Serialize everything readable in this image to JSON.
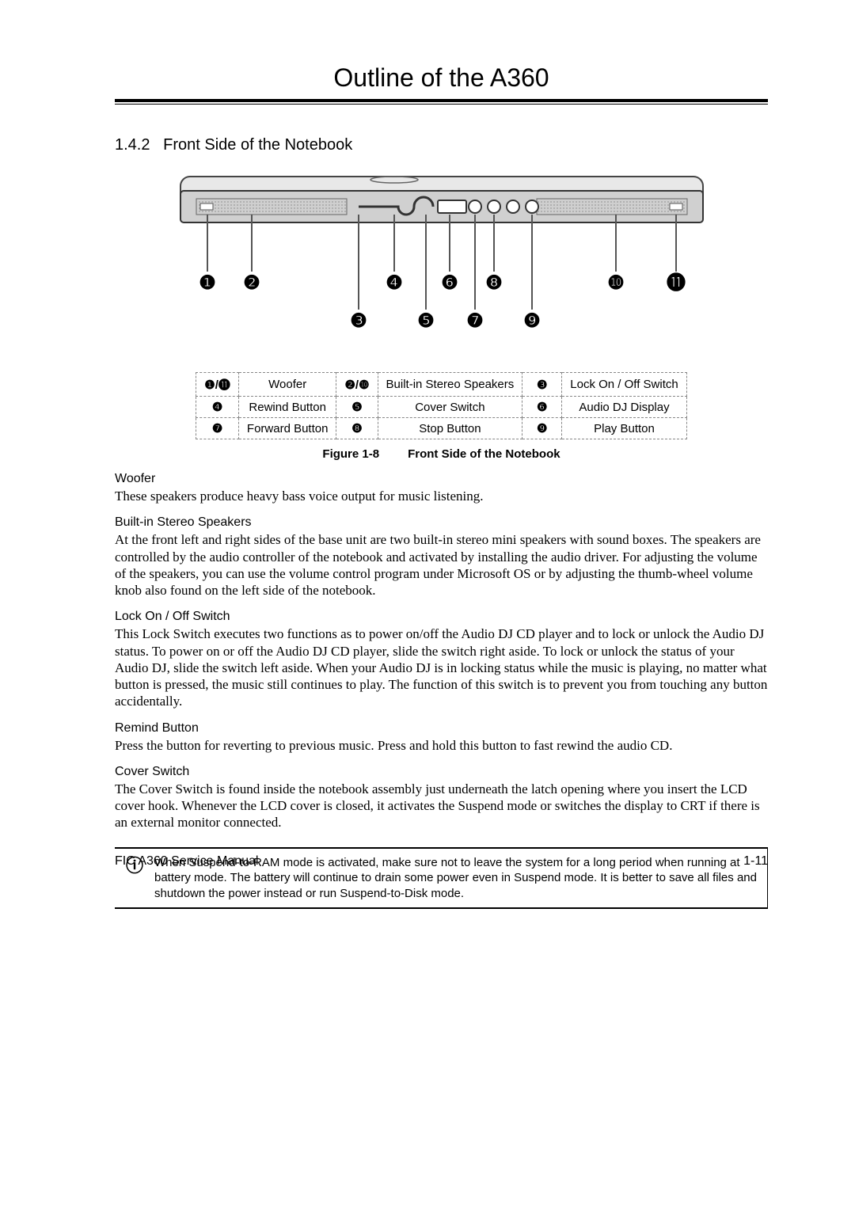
{
  "header": {
    "title": "Outline of the A360"
  },
  "section": {
    "number": "1.4.2",
    "title": "Front Side of the Notebook"
  },
  "diagram": {
    "callouts_top": [
      "❶",
      "❷",
      "❹",
      "❻",
      "❽",
      "❿",
      "⓫"
    ],
    "callouts_bot": [
      "❸",
      "❺",
      "❼",
      "❾"
    ],
    "device_fill": "#d8d8d8",
    "device_stroke": "#333333",
    "ptr_color": "#555555",
    "label_fontsize": 20
  },
  "legend": {
    "rows": [
      {
        "a": "❶/⓫",
        "al": "Woofer",
        "b": "❷/❿",
        "bl": "Built-in Stereo Speakers",
        "c": "❸",
        "cl": "Lock On / Off Switch"
      },
      {
        "a": "❹",
        "al": "Rewind Button",
        "b": "❺",
        "bl": "Cover Switch",
        "c": "❻",
        "cl": "Audio DJ Display"
      },
      {
        "a": "❼",
        "al": "Forward Button",
        "b": "❽",
        "bl": "Stop Button",
        "c": "❾",
        "cl": "Play Button"
      }
    ]
  },
  "figure": {
    "num": "Figure 1-8",
    "title": "Front Side of the Notebook"
  },
  "sections": {
    "woofer": {
      "h": "Woofer",
      "p": "These speakers produce heavy bass voice output for music listening."
    },
    "speakers": {
      "h": "Built-in Stereo Speakers",
      "p": "At the front left and right sides of the base unit are two built-in stereo mini speakers with sound boxes. The speakers are controlled by the audio controller of the notebook and activated by installing the audio driver. For adjusting the volume of the speakers, you can use the volume control program under Microsoft OS or by adjusting the thumb-wheel volume knob also found on the left side of the notebook."
    },
    "lock": {
      "h": "Lock On / Off Switch",
      "p": "This Lock Switch executes two functions as to power on/off the Audio DJ CD player and to lock or unlock the Audio DJ status. To power on or off the Audio DJ CD player, slide the switch right aside. To lock or unlock the status of your Audio DJ, slide the switch left aside. When your Audio DJ is in locking status while the music is playing, no matter what button is pressed, the music still continues to play. The function of this switch is to prevent you from touching any button accidentally."
    },
    "remind": {
      "h": "Remind Button",
      "p": "Press the button for reverting to previous music. Press and hold this button to fast rewind the audio CD."
    },
    "cover": {
      "h": "Cover Switch",
      "p": "The Cover Switch is found inside the notebook assembly just underneath the latch opening where you insert the LCD cover hook. Whenever the LCD cover is closed, it activates the Suspend mode or switches the display to CRT if there is an external monitor connected."
    }
  },
  "note": {
    "icon": "ⓘ",
    "text": "When Suspend-to-RAM mode is activated, make sure not to leave the system for a long period when running at battery mode. The battery will continue to drain some power even in Suspend mode. It is better to save all files and shutdown the power instead or run Suspend-to-Disk mode."
  },
  "footer": {
    "left": "FIC A360 Service Manual",
    "right": "1-11"
  }
}
